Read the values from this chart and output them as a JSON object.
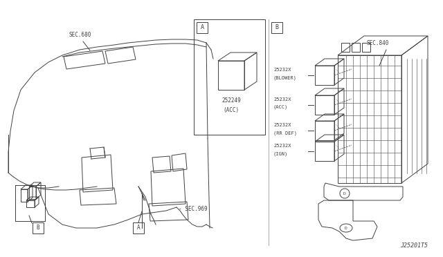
{
  "bg_color": "#ffffff",
  "line_color": "#404040",
  "text_color": "#404040",
  "diagram_id": "J25201T5",
  "right_parts": [
    {
      "part": "25232X",
      "desc": "(BLOWER)"
    },
    {
      "part": "25232X",
      "desc": "(ACC)"
    },
    {
      "part": "25232X",
      "desc": "(RR DEF)"
    },
    {
      "part": "25232X",
      "desc": "(IGN)"
    }
  ]
}
